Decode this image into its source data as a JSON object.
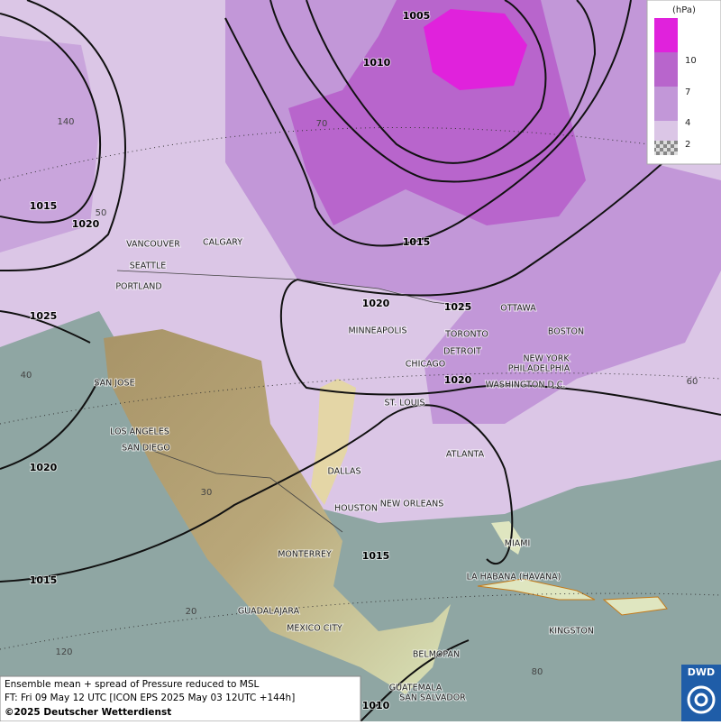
{
  "legend": {
    "unit": "(hPa)",
    "ticks": [
      10,
      7,
      4,
      2
    ]
  },
  "isobars": [
    1005,
    1010,
    1015,
    1020,
    1015,
    1020,
    1025,
    1025,
    1020,
    1020,
    1015,
    1015,
    1010
  ],
  "graticule": [
    "70",
    "140",
    "50",
    "40",
    "30",
    "20",
    "120",
    "80",
    "60"
  ],
  "cities": [
    "VANCOUVER",
    "CALGARY",
    "SEATTLE",
    "PORTLAND",
    "MINNEAPOLIS",
    "OTTAWA",
    "TORONTO",
    "BOSTON",
    "DETROIT",
    "NEW YORK",
    "PHILADELPHIA",
    "CHICAGO",
    "WASHINGTON D.C.",
    "ST. LOUIS",
    "SAN JOSE",
    "LOS ANGELES",
    "SAN DIEGO",
    "DALLAS",
    "ATLANTA",
    "HOUSTON",
    "NEW ORLEANS",
    "MIAMI",
    "MONTERREY",
    "LA HABANA (HAVANA)",
    "GUADALAJARA",
    "MEXICO CITY",
    "KINGSTON",
    "BELMOPAN",
    "GUATEMALA",
    "SAN SALVADOR"
  ],
  "footer": {
    "line1": "Ensemble mean + spread of Pressure reduced to MSL",
    "line2": "FT: Fri 09 May 12 UTC [ICON EPS 2025 May 03 12UTC +144h]",
    "line3": "©2025 Deutscher Wetterdienst"
  },
  "logo": "DWD"
}
